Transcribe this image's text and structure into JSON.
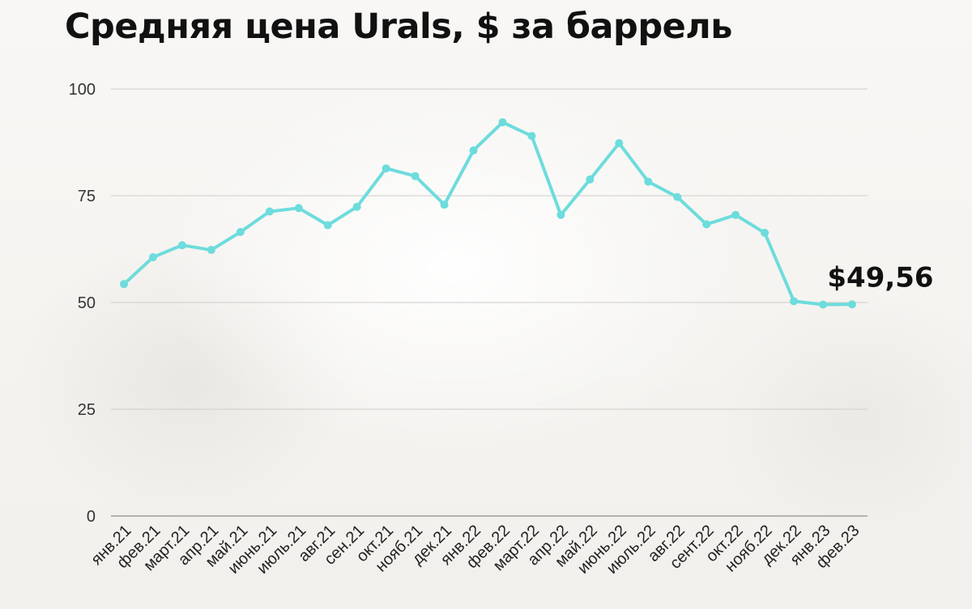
{
  "chart_data": {
    "type": "line",
    "title": "Средняя цена Urals, $ за баррель",
    "xlabel": "",
    "ylabel": "",
    "ylim": [
      0,
      100
    ],
    "yticks": [
      0,
      25,
      50,
      75,
      100
    ],
    "grid": true,
    "legend": "none",
    "line_color": "#6ddcdc",
    "categories": [
      "янв.21",
      "фев.21",
      "март.21",
      "апр.21",
      "май.21",
      "июнь.21",
      "июль.21",
      "авг.21",
      "сен.21",
      "окт.21",
      "нояб.21",
      "дек.21",
      "янв.22",
      "фев.22",
      "март.22",
      "апр.22",
      "май.22",
      "июнь.22",
      "июль.22",
      "авг.22",
      "сент.22",
      "окт.22",
      "нояб.22",
      "дек.22",
      "янв.23",
      "фев.23"
    ],
    "series": [
      {
        "values": [
          54.3,
          60.6,
          63.4,
          62.3,
          66.5,
          71.3,
          72.1,
          68.1,
          72.4,
          81.4,
          79.6,
          72.9,
          85.6,
          92.2,
          89.0,
          70.5,
          78.8,
          87.3,
          78.3,
          74.7,
          68.3,
          70.5,
          66.3,
          50.3,
          49.5,
          49.56
        ]
      }
    ],
    "annotation": {
      "text": "$49,56",
      "category": "фев.23"
    }
  }
}
